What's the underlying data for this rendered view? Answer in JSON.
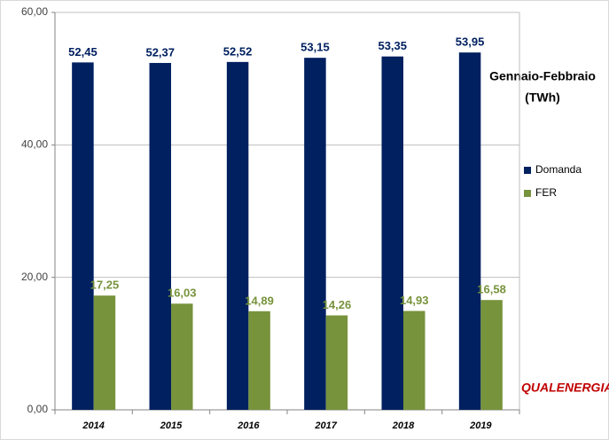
{
  "chart_data": {
    "type": "bar",
    "annotation": [
      "Gennaio-Febbraio",
      "(TWh)"
    ],
    "logo": "QUALENERGIA.it",
    "categories": [
      "2014",
      "2015",
      "2016",
      "2017",
      "2018",
      "2019"
    ],
    "series": [
      {
        "name": "Domanda",
        "color": "#002060",
        "values": [
          52.45,
          52.37,
          52.52,
          53.15,
          53.35,
          53.95
        ],
        "value_labels": [
          "52,45",
          "52,37",
          "52,52",
          "53,15",
          "53,35",
          "53,95"
        ]
      },
      {
        "name": "FER",
        "color": "#77933c",
        "values": [
          17.25,
          16.03,
          14.89,
          14.26,
          14.93,
          16.58
        ],
        "value_labels": [
          "17,25",
          "16,03",
          "14,89",
          "14,26",
          "14,93",
          "16,58"
        ]
      }
    ],
    "ylim": [
      0,
      60
    ],
    "yticks": [
      {
        "value": 0,
        "label": "0,00"
      },
      {
        "value": 20,
        "label": "20,00"
      },
      {
        "value": 40,
        "label": "40,00"
      },
      {
        "value": 60,
        "label": "60,00"
      }
    ],
    "grid": true,
    "legend": "right"
  }
}
